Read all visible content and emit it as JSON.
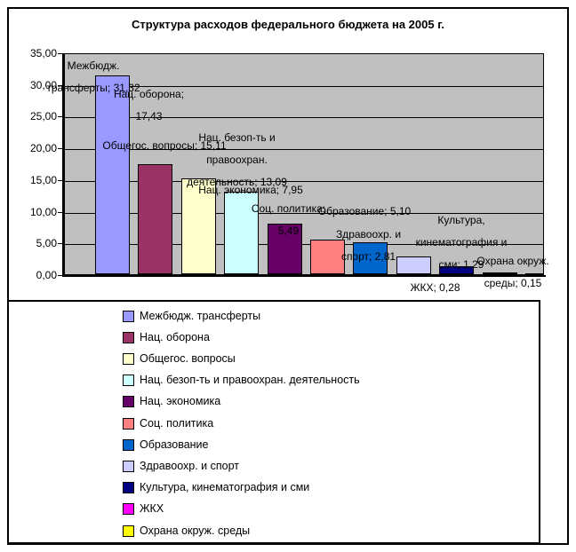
{
  "chart_data": {
    "type": "bar",
    "title": "Структура расходов федерального бюджета на 2005 г.",
    "categories": [
      "Межбюдж. трансферты",
      "Нац. оборона",
      "Общегос. вопросы",
      "Нац. безоп-ть и правоохран. деятельность",
      "Нац. экономика",
      "Соц. политика",
      "Образование",
      "Здравоохр. и спорт",
      "Культура, кинематография и сми",
      "ЖКХ",
      "Охрана окруж. среды"
    ],
    "values": [
      31.32,
      17.43,
      15.11,
      13.09,
      7.95,
      5.49,
      5.1,
      2.81,
      1.29,
      0.28,
      0.15
    ],
    "data_labels": [
      "Межбюдж. трансферты; 31,32",
      "Нац. оборона; 17,43",
      "Общегос. вопросы; 15,11",
      "Нац. безоп-ть и правоохран. деятельность; 13,09",
      "Нац. экономика; 7,95",
      "Соц. политика; 5,49",
      "Образование; 5,10",
      "Здравоохр. и спорт; 2,81",
      "Культура, кинематография и сми; 1,29",
      "ЖКХ; 0,28",
      "Охрана окруж. среды; 0,15"
    ],
    "colors": [
      "#9999FF",
      "#993366",
      "#FFFFCC",
      "#CCFFFF",
      "#660066",
      "#FF8080",
      "#0066CC",
      "#CCCCFF",
      "#000080",
      "#FF00FF",
      "#FFFF00"
    ],
    "ylim": [
      0,
      35
    ],
    "ytick_step": 5,
    "ytick_labels": [
      "0,00",
      "5,00",
      "10,00",
      "15,00",
      "20,00",
      "25,00",
      "30,00",
      "35,00"
    ],
    "grid": true,
    "plot_background": "#C0C0C0",
    "legend_position": "bottom"
  }
}
